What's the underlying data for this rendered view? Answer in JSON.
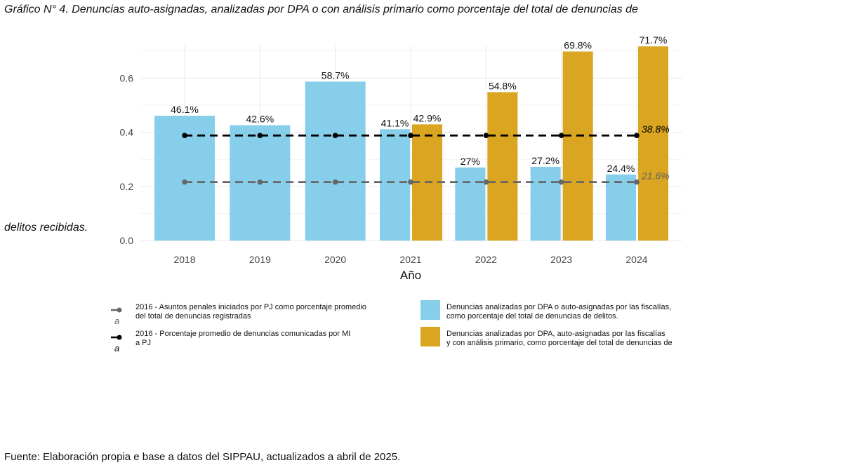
{
  "title_line1": "Gráfico N° 4. Denuncias auto-asignadas, analizadas por DPA o con análisis primario como porcentaje del total de denuncias de",
  "title_line2": "delitos recibidas.",
  "source": "Fuente: Elaboración propia e base a datos del SIPPAU, actualizados a abril de 2025.",
  "colors": {
    "blue": "#87CEEB",
    "gold": "#DAA520",
    "ref_black": "#000000",
    "ref_gray": "#666666",
    "grid": "#EBEBEB"
  },
  "chart_data": {
    "type": "bar",
    "xlabel": "Año",
    "ylabel": "",
    "categories": [
      "2018",
      "2019",
      "2020",
      "2021",
      "2022",
      "2023",
      "2024"
    ],
    "y_ticks": [
      "0.0",
      "0.2",
      "0.4",
      "0.6"
    ],
    "ylim": [
      0,
      0.72
    ],
    "grid": true,
    "legend_position": "bottom",
    "series": [
      {
        "name": "Denuncias analizadas por DPA o auto-asignadas por las fiscalías, como porcentaje del total de denuncias de delitos.",
        "color": "#87CEEB",
        "values": [
          0.461,
          0.426,
          0.587,
          0.411,
          0.27,
          0.272,
          0.244
        ],
        "labels": [
          "46.1%",
          "42.6%",
          "58.7%",
          "41.1%",
          "27%",
          "27.2%",
          "24.4%"
        ]
      },
      {
        "name": "Denuncias analizadas por DPA, auto-asignadas por las fiscalías y con análisis primario, como porcentaje del total de denuncias de",
        "color": "#DAA520",
        "values": [
          null,
          null,
          null,
          0.429,
          0.548,
          0.698,
          0.717
        ],
        "labels": [
          "",
          "",
          "",
          "42.9%",
          "54.8%",
          "69.8%",
          "71.7%"
        ]
      }
    ],
    "reference_lines": [
      {
        "name": "2016 - Porcentaje promedio de denuncias comunicadas por MI a PJ",
        "value": 0.388,
        "label": "38.8%",
        "color": "#000000",
        "style": "dashed"
      },
      {
        "name": "2016 - Asuntos penales iniciados por PJ como porcentaje promedio del total de denuncias registradas",
        "value": 0.216,
        "label": "21.6%",
        "color": "#666666",
        "style": "dashed"
      }
    ]
  },
  "legend": {
    "ref_gray_line1": "2016 - Asuntos penales iniciados por PJ como porcentaje promedio",
    "ref_gray_line2": "del total de denuncias registradas",
    "ref_black_line1": "2016 - Porcentaje promedio de denuncias comunicadas por MI",
    "ref_black_line2": "a PJ",
    "blue_line1": "Denuncias analizadas por DPA o auto-asignadas por las fiscalías,",
    "blue_line2": "como porcentaje del total de denuncias de delitos.",
    "gold_line1": "Denuncias analizadas por DPA, auto-asignadas por las fiscalías",
    "gold_line2": "y con análisis primario, como porcentaje del total de denuncias de",
    "marker_glyph": "a"
  }
}
